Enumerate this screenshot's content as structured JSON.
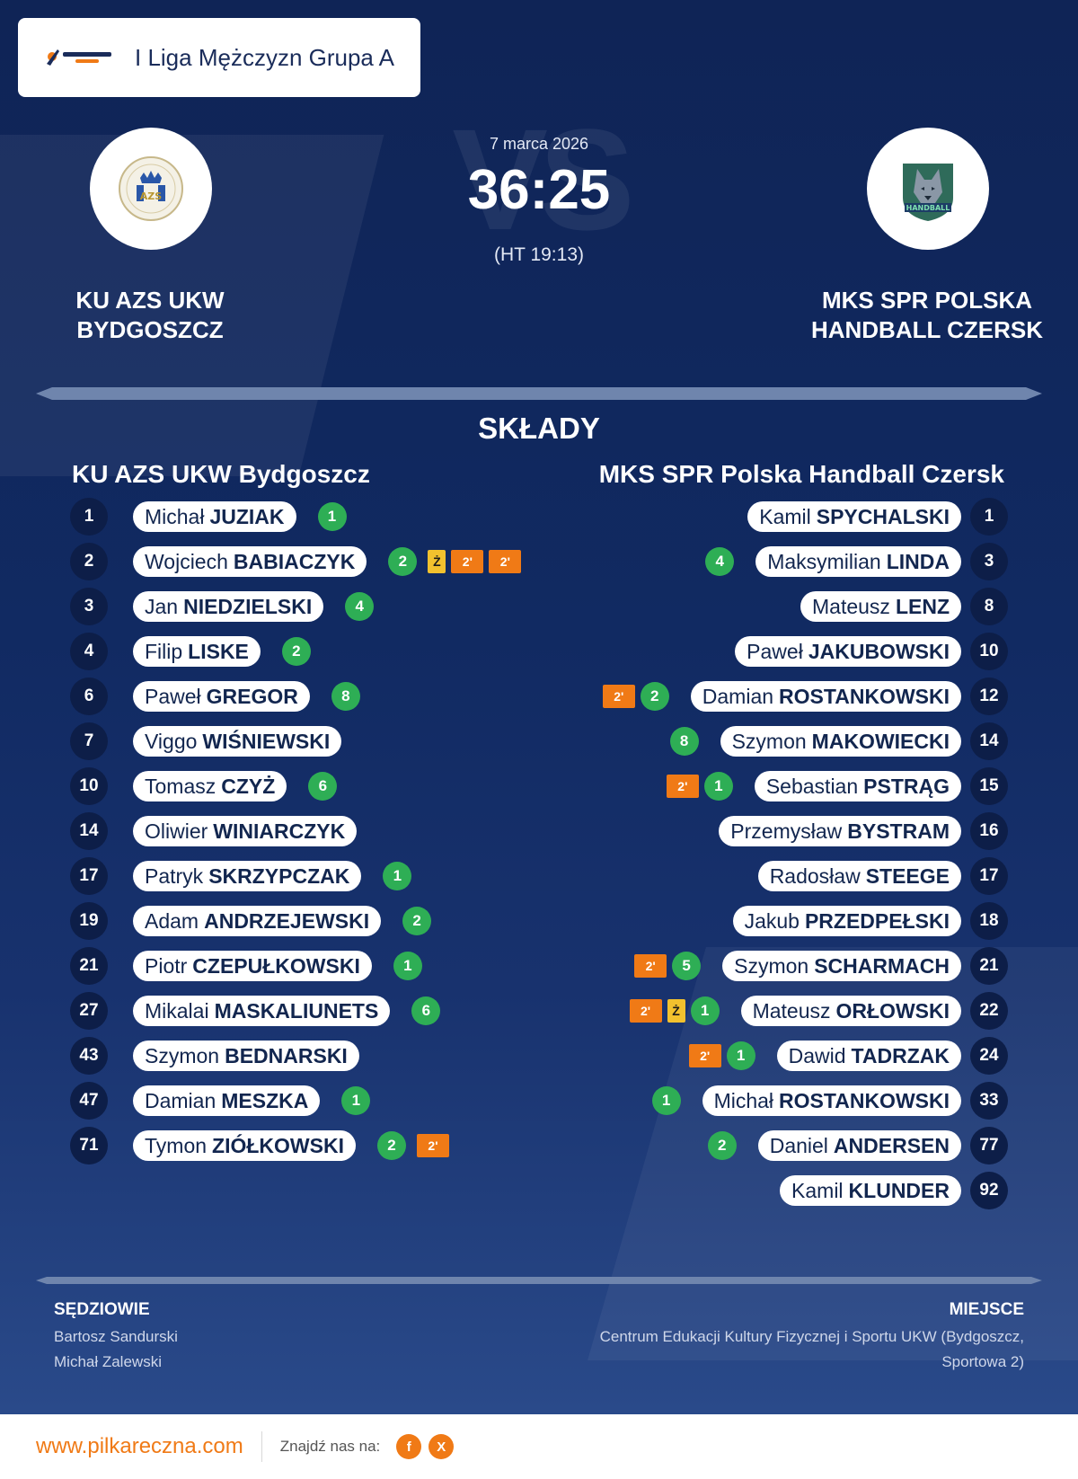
{
  "league": {
    "name": "I Liga Mężczyzn Grupa A",
    "logo_icon": "pilkareczna-logo"
  },
  "match": {
    "date": "7 marca 2026",
    "score": "36:25",
    "halftime": "(HT 19:13)",
    "vs": "VS"
  },
  "home": {
    "name_upper": "KU AZS UKW BYDGOSZCZ",
    "name": "KU AZS UKW Bydgoszcz",
    "logo_icon": "azs-ukw-crest-icon"
  },
  "away": {
    "name_upper": "MKS SPR POLSKA HANDBALL CZERSK",
    "name": "MKS SPR Polska Handball Czersk",
    "logo_icon": "wolf-handball-crest-icon"
  },
  "section_title": "SKŁADY",
  "home_roster": [
    {
      "number": "1",
      "first": "Michał",
      "last": "JUZIAK",
      "goals": "1",
      "cards": []
    },
    {
      "number": "2",
      "first": "Wojciech",
      "last": "BABIACZYK",
      "goals": "2",
      "cards": [
        "Ż",
        "2'",
        "2'"
      ]
    },
    {
      "number": "3",
      "first": "Jan",
      "last": "NIEDZIELSKI",
      "goals": "4",
      "cards": []
    },
    {
      "number": "4",
      "first": "Filip",
      "last": "LISKE",
      "goals": "2",
      "cards": []
    },
    {
      "number": "6",
      "first": "Paweł",
      "last": "GREGOR",
      "goals": "8",
      "cards": []
    },
    {
      "number": "7",
      "first": "Viggo",
      "last": "WIŚNIEWSKI",
      "goals": "",
      "cards": []
    },
    {
      "number": "10",
      "first": "Tomasz",
      "last": "CZYŻ",
      "goals": "6",
      "cards": []
    },
    {
      "number": "14",
      "first": "Oliwier",
      "last": "WINIARCZYK",
      "goals": "",
      "cards": []
    },
    {
      "number": "17",
      "first": "Patryk",
      "last": "SKRZYPCZAK",
      "goals": "1",
      "cards": []
    },
    {
      "number": "19",
      "first": "Adam",
      "last": "ANDRZEJEWSKI",
      "goals": "2",
      "cards": []
    },
    {
      "number": "21",
      "first": "Piotr",
      "last": "CZEPUŁKOWSKI",
      "goals": "1",
      "cards": []
    },
    {
      "number": "27",
      "first": "Mikalai",
      "last": "MASKALIUNETS",
      "goals": "6",
      "cards": []
    },
    {
      "number": "43",
      "first": "Szymon",
      "last": "BEDNARSKI",
      "goals": "",
      "cards": []
    },
    {
      "number": "47",
      "first": "Damian",
      "last": "MESZKA",
      "goals": "1",
      "cards": []
    },
    {
      "number": "71",
      "first": "Tymon",
      "last": "ZIÓŁKOWSKI",
      "goals": "2",
      "cards": [
        "2'"
      ]
    }
  ],
  "away_roster": [
    {
      "number": "1",
      "first": "Kamil",
      "last": "SPYCHALSKI",
      "goals": "",
      "cards": []
    },
    {
      "number": "3",
      "first": "Maksymilian",
      "last": "LINDA",
      "goals": "4",
      "cards": []
    },
    {
      "number": "8",
      "first": "Mateusz",
      "last": "LENZ",
      "goals": "",
      "cards": []
    },
    {
      "number": "10",
      "first": "Paweł",
      "last": "JAKUBOWSKI",
      "goals": "",
      "cards": []
    },
    {
      "number": "12",
      "first": "Damian",
      "last": "ROSTANKOWSKI",
      "goals": "2",
      "cards": [
        "2'"
      ]
    },
    {
      "number": "14",
      "first": "Szymon",
      "last": "MAKOWIECKI",
      "goals": "8",
      "cards": []
    },
    {
      "number": "15",
      "first": "Sebastian",
      "last": "PSTRĄG",
      "goals": "1",
      "cards": [
        "2'"
      ]
    },
    {
      "number": "16",
      "first": "Przemysław",
      "last": "BYSTRAM",
      "goals": "",
      "cards": []
    },
    {
      "number": "17",
      "first": "Radosław",
      "last": "STEEGE",
      "goals": "",
      "cards": []
    },
    {
      "number": "18",
      "first": "Jakub",
      "last": "PRZEDPEŁSKI",
      "goals": "",
      "cards": []
    },
    {
      "number": "21",
      "first": "Szymon",
      "last": "SCHARMACH",
      "goals": "5",
      "cards": [
        "2'"
      ]
    },
    {
      "number": "22",
      "first": "Mateusz",
      "last": "ORŁOWSKI",
      "goals": "1",
      "cards": [
        "Ż",
        "2'"
      ]
    },
    {
      "number": "24",
      "first": "Dawid",
      "last": "TADRZAK",
      "goals": "1",
      "cards": [
        "2'"
      ]
    },
    {
      "number": "33",
      "first": "Michał",
      "last": "ROSTANKOWSKI",
      "goals": "1",
      "cards": []
    },
    {
      "number": "77",
      "first": "Daniel",
      "last": "ANDERSEN",
      "goals": "2",
      "cards": []
    },
    {
      "number": "92",
      "first": "Kamil",
      "last": "KLUNDER",
      "goals": "",
      "cards": []
    }
  ],
  "referees": {
    "label": "SĘDZIOWIE",
    "names": [
      "Bartosz Sandurski",
      "Michał Zalewski"
    ]
  },
  "venue": {
    "label": "MIEJSCE",
    "line1": "Centrum Edukacji Kultury Fizycznej i Sportu UKW (Bydgoszcz,",
    "line2": "Sportowa 2)"
  },
  "footer": {
    "url": "www.pilkareczna.com",
    "find_us": "Znajdź nas na:",
    "facebook": "f",
    "x": "X"
  },
  "colors": {
    "goal": "#2eae55",
    "yellow_card": "#f2c12e",
    "suspension": "#f07a16",
    "background": "#0f2456",
    "accent": "#f07a16"
  }
}
